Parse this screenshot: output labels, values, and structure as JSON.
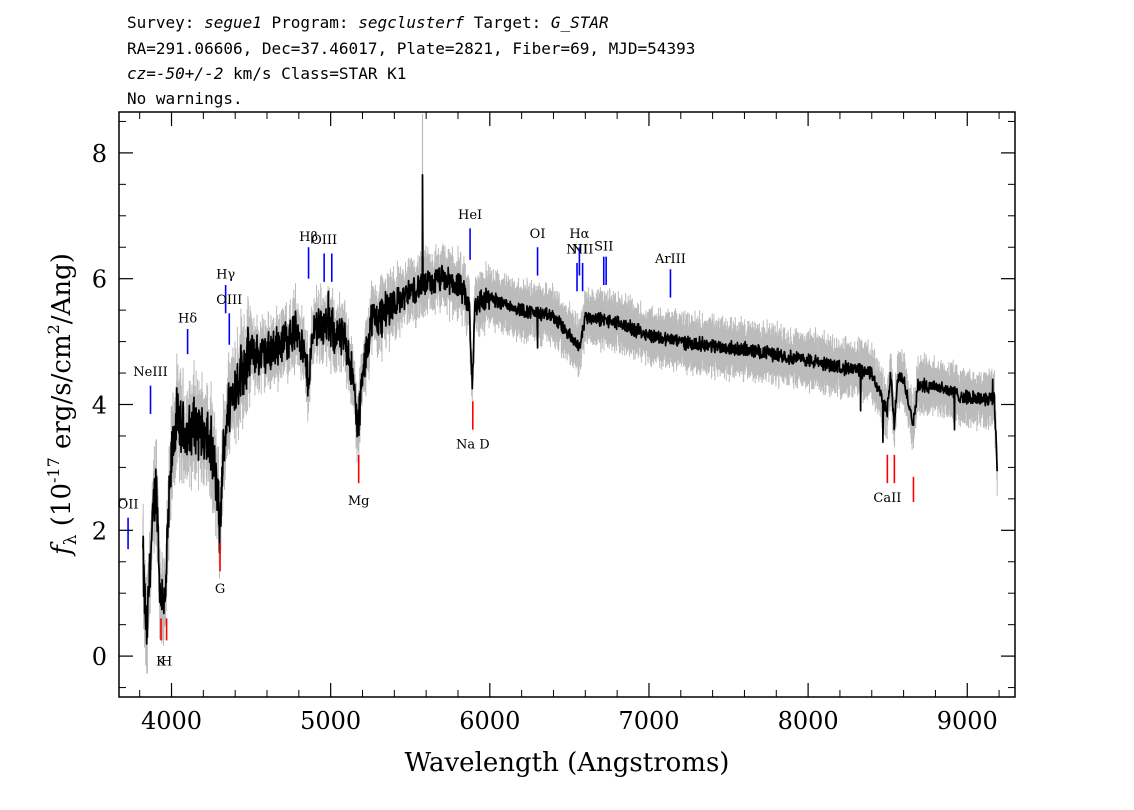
{
  "header": {
    "line1": {
      "survey_label": "Survey: ",
      "survey": "segue1",
      "program_label": " Program: ",
      "program": "segclusterf",
      "target_label": " Target: ",
      "target": "G_STAR"
    },
    "line2": "RA=291.06606, Dec=37.46017, Plate=2821, Fiber=69, MJD=54393",
    "line3": {
      "cz": "cz=-50+/-2",
      "rest": " km/s Class=STAR K1"
    },
    "line4": "No warnings."
  },
  "chart_data": {
    "type": "line",
    "xlabel": "Wavelength (Angstroms)",
    "ylabel_prefix": "f",
    "ylabel_sub": "λ",
    "ylabel_main": " (10",
    "ylabel_exp": "-17",
    "ylabel_mid": " erg/s/cm",
    "ylabel_exp2": "2",
    "ylabel_end": "/Ang)",
    "xlim": [
      3670,
      9300
    ],
    "ylim": [
      -0.65,
      8.65
    ],
    "xticks": [
      4000,
      5000,
      6000,
      7000,
      8000,
      9000
    ],
    "xtick_labels": [
      "4000",
      "5000",
      "6000",
      "7000",
      "8000",
      "9000"
    ],
    "yticks": [
      0,
      2,
      4,
      6,
      8
    ],
    "ytick_labels": [
      "0",
      "2",
      "4",
      "6",
      "8"
    ],
    "flux_color": "#000000",
    "error_color": "#bbbbbb",
    "emission_color": "#0000ff",
    "absorption_color": "#ff0000",
    "spectrum_anchors": [
      [
        3820,
        1.6
      ],
      [
        3830,
        0.9
      ],
      [
        3845,
        0.3
      ],
      [
        3860,
        1.2
      ],
      [
        3880,
        2.0
      ],
      [
        3900,
        2.8
      ],
      [
        3915,
        2.1
      ],
      [
        3930,
        0.8
      ],
      [
        3945,
        1.1
      ],
      [
        3960,
        0.7
      ],
      [
        3975,
        1.9
      ],
      [
        4000,
        3.1
      ],
      [
        4030,
        3.8
      ],
      [
        4060,
        3.6
      ],
      [
        4100,
        3.5
      ],
      [
        4150,
        3.7
      ],
      [
        4200,
        3.5
      ],
      [
        4250,
        3.3
      ],
      [
        4290,
        2.6
      ],
      [
        4305,
        1.9
      ],
      [
        4320,
        3.0
      ],
      [
        4350,
        3.9
      ],
      [
        4400,
        4.3
      ],
      [
        4450,
        4.6
      ],
      [
        4500,
        4.8
      ],
      [
        4600,
        4.8
      ],
      [
        4700,
        5.0
      ],
      [
        4800,
        5.2
      ],
      [
        4860,
        4.4
      ],
      [
        4900,
        5.3
      ],
      [
        5000,
        5.2
      ],
      [
        5100,
        5.0
      ],
      [
        5150,
        4.2
      ],
      [
        5172,
        3.5
      ],
      [
        5190,
        4.2
      ],
      [
        5250,
        5.3
      ],
      [
        5400,
        5.6
      ],
      [
        5500,
        5.8
      ],
      [
        5580,
        5.9
      ],
      [
        5600,
        5.9
      ],
      [
        5700,
        6.0
      ],
      [
        5800,
        5.9
      ],
      [
        5870,
        5.6
      ],
      [
        5890,
        4.2
      ],
      [
        5905,
        5.6
      ],
      [
        6000,
        5.7
      ],
      [
        6200,
        5.5
      ],
      [
        6400,
        5.4
      ],
      [
        6563,
        4.9
      ],
      [
        6600,
        5.4
      ],
      [
        6800,
        5.3
      ],
      [
        7000,
        5.1
      ],
      [
        7200,
        5.0
      ],
      [
        7500,
        4.9
      ],
      [
        7800,
        4.8
      ],
      [
        8000,
        4.7
      ],
      [
        8200,
        4.6
      ],
      [
        8400,
        4.5
      ],
      [
        8498,
        3.9
      ],
      [
        8520,
        4.5
      ],
      [
        8542,
        3.6
      ],
      [
        8560,
        4.4
      ],
      [
        8600,
        4.4
      ],
      [
        8662,
        3.7
      ],
      [
        8690,
        4.3
      ],
      [
        8800,
        4.3
      ],
      [
        9000,
        4.1
      ],
      [
        9100,
        4.1
      ],
      [
        9170,
        4.1
      ],
      [
        9185,
        3.2
      ],
      [
        9190,
        2.8
      ]
    ],
    "spikes": [
      [
        5577,
        7.65
      ],
      [
        4985,
        5.8
      ],
      [
        6300,
        4.9
      ],
      [
        7605,
        5.0
      ],
      [
        8470,
        3.4
      ],
      [
        8920,
        3.6
      ],
      [
        9160,
        4.4
      ],
      [
        8330,
        3.9
      ]
    ],
    "lines": [
      {
        "label": "OII",
        "wave": 3727,
        "y1": 1.7,
        "y2": 2.2,
        "kind": "emission",
        "label_y": 2.35
      },
      {
        "label": "NeIII",
        "wave": 3868,
        "y1": 3.85,
        "y2": 4.3,
        "kind": "emission",
        "label_y": 4.45
      },
      {
        "label": "Hδ",
        "wave": 4101,
        "y1": 4.8,
        "y2": 5.2,
        "kind": "emission",
        "label_y": 5.3
      },
      {
        "label": "Hγ",
        "wave": 4340,
        "y1": 5.45,
        "y2": 5.9,
        "kind": "emission",
        "label_y": 6.0
      },
      {
        "label": "OIII",
        "wave": 4363,
        "y1": 4.95,
        "y2": 5.45,
        "kind": "emission",
        "label_y": 5.6
      },
      {
        "label": "Hβ",
        "wave": 4861,
        "y1": 6.0,
        "y2": 6.5,
        "kind": "emission",
        "label_y": 6.6
      },
      {
        "label": "OIII",
        "wave": 4959,
        "y1": 5.95,
        "y2": 6.4,
        "kind": "emission",
        "label_y": 6.55
      },
      {
        "label": "",
        "wave": 5007,
        "y1": 5.95,
        "y2": 6.4,
        "kind": "emission",
        "label_y": 6.55
      },
      {
        "label": "HeI",
        "wave": 5876,
        "y1": 6.3,
        "y2": 6.8,
        "kind": "emission",
        "label_y": 6.95
      },
      {
        "label": "OI",
        "wave": 6300,
        "y1": 6.05,
        "y2": 6.5,
        "kind": "emission",
        "label_y": 6.65
      },
      {
        "label": "NII",
        "wave": 6548,
        "y1": 5.8,
        "y2": 6.25,
        "kind": "emission",
        "label_y": 6.4
      },
      {
        "label": "Hα",
        "wave": 6563,
        "y1": 6.05,
        "y2": 6.5,
        "kind": "emission",
        "label_y": 6.65
      },
      {
        "label": "NII",
        "wave": 6583,
        "y1": 5.8,
        "y2": 6.25,
        "kind": "emission",
        "label_y": 6.4
      },
      {
        "label": "SII",
        "wave": 6716,
        "y1": 5.9,
        "y2": 6.35,
        "kind": "emission",
        "label_y": 6.45
      },
      {
        "label": "",
        "wave": 6731,
        "y1": 5.9,
        "y2": 6.35,
        "kind": "emission",
        "label_y": 6.45
      },
      {
        "label": "ArIII",
        "wave": 7135,
        "y1": 5.7,
        "y2": 6.15,
        "kind": "emission",
        "label_y": 6.25
      },
      {
        "label": "K",
        "wave": 3934,
        "y1": 0.25,
        "y2": 0.6,
        "kind": "absorption",
        "label_y": -0.15
      },
      {
        "label": "H",
        "wave": 3969,
        "y1": 0.25,
        "y2": 0.6,
        "kind": "absorption",
        "label_y": -0.15
      },
      {
        "label": "G",
        "wave": 4305,
        "y1": 1.35,
        "y2": 1.8,
        "kind": "absorption",
        "label_y": 1.0
      },
      {
        "label": "Mg",
        "wave": 5176,
        "y1": 2.75,
        "y2": 3.2,
        "kind": "absorption",
        "label_y": 2.4
      },
      {
        "label": "Na D",
        "wave": 5893,
        "y1": 3.6,
        "y2": 4.05,
        "kind": "absorption",
        "label_y": 3.3
      },
      {
        "label": "CaII",
        "wave": 8498,
        "y1": 2.75,
        "y2": 3.2,
        "kind": "absorption",
        "label_y": 2.45
      },
      {
        "label": "",
        "wave": 8542,
        "y1": 2.75,
        "y2": 3.2,
        "kind": "absorption",
        "label_y": 2.45
      },
      {
        "label": "",
        "wave": 8662,
        "y1": 2.45,
        "y2": 2.85,
        "kind": "absorption",
        "label_y": 2.1
      }
    ]
  }
}
